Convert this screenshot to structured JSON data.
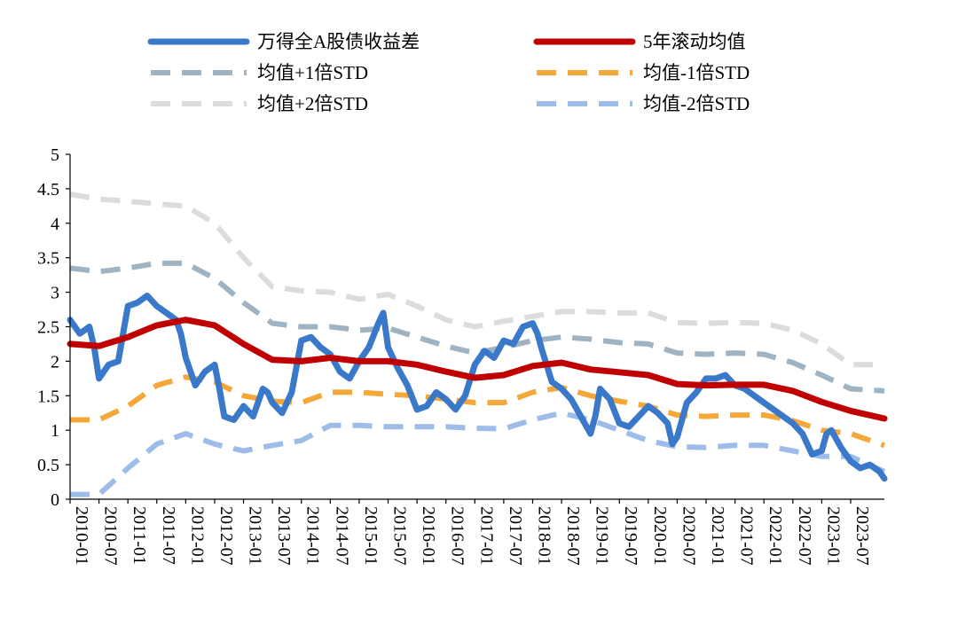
{
  "chart_data": {
    "type": "line",
    "title": "",
    "xlabel": "",
    "ylabel": "",
    "ylim": [
      0,
      5
    ],
    "y_ticks": [
      "0",
      "0.5",
      "1",
      "1.5",
      "2",
      "2.5",
      "3",
      "3.5",
      "4",
      "4.5",
      "5"
    ],
    "x_ticks": [
      "2010-01",
      "2010-07",
      "2011-01",
      "2011-07",
      "2012-01",
      "2012-07",
      "2013-01",
      "2013-07",
      "2014-01",
      "2014-07",
      "2015-01",
      "2015-07",
      "2016-01",
      "2016-07",
      "2017-01",
      "2017-07",
      "2018-01",
      "2018-07",
      "2019-01",
      "2019-07",
      "2020-01",
      "2020-07",
      "2021-01",
      "2021-07",
      "2022-01",
      "2022-07",
      "2023-01",
      "2023-07"
    ],
    "x_range": [
      "2010-01",
      "2024-02"
    ],
    "grid": false,
    "legend_position": "top",
    "series": [
      {
        "name": "万得全A股债收益差",
        "color": "#3a78c9",
        "style": "solid-thick",
        "points": [
          [
            "2010-01",
            2.6
          ],
          [
            "2010-03",
            2.4
          ],
          [
            "2010-05",
            2.5
          ],
          [
            "2010-06",
            2.2
          ],
          [
            "2010-07",
            1.75
          ],
          [
            "2010-09",
            1.95
          ],
          [
            "2010-11",
            2.0
          ],
          [
            "2011-01",
            2.8
          ],
          [
            "2011-03",
            2.85
          ],
          [
            "2011-05",
            2.95
          ],
          [
            "2011-07",
            2.8
          ],
          [
            "2011-09",
            2.7
          ],
          [
            "2011-11",
            2.6
          ],
          [
            "2011-12",
            2.4
          ],
          [
            "2012-01",
            2.05
          ],
          [
            "2012-03",
            1.65
          ],
          [
            "2012-05",
            1.85
          ],
          [
            "2012-07",
            1.95
          ],
          [
            "2012-08",
            1.6
          ],
          [
            "2012-09",
            1.2
          ],
          [
            "2012-11",
            1.15
          ],
          [
            "2013-01",
            1.35
          ],
          [
            "2013-03",
            1.2
          ],
          [
            "2013-05",
            1.6
          ],
          [
            "2013-06",
            1.55
          ],
          [
            "2013-07",
            1.4
          ],
          [
            "2013-09",
            1.25
          ],
          [
            "2013-11",
            1.55
          ],
          [
            "2014-01",
            2.3
          ],
          [
            "2014-03",
            2.35
          ],
          [
            "2014-05",
            2.2
          ],
          [
            "2014-07",
            2.1
          ],
          [
            "2014-09",
            1.85
          ],
          [
            "2014-11",
            1.75
          ],
          [
            "2015-01",
            2.0
          ],
          [
            "2015-03",
            2.2
          ],
          [
            "2015-05",
            2.55
          ],
          [
            "2015-06",
            2.7
          ],
          [
            "2015-07",
            2.2
          ],
          [
            "2015-09",
            1.9
          ],
          [
            "2015-11",
            1.65
          ],
          [
            "2016-01",
            1.3
          ],
          [
            "2016-03",
            1.35
          ],
          [
            "2016-05",
            1.55
          ],
          [
            "2016-07",
            1.45
          ],
          [
            "2016-09",
            1.3
          ],
          [
            "2016-11",
            1.5
          ],
          [
            "2017-01",
            1.95
          ],
          [
            "2017-03",
            2.15
          ],
          [
            "2017-05",
            2.05
          ],
          [
            "2017-07",
            2.3
          ],
          [
            "2017-09",
            2.25
          ],
          [
            "2017-11",
            2.5
          ],
          [
            "2018-01",
            2.55
          ],
          [
            "2018-02",
            2.4
          ],
          [
            "2018-03",
            2.15
          ],
          [
            "2018-05",
            1.7
          ],
          [
            "2018-07",
            1.6
          ],
          [
            "2018-09",
            1.45
          ],
          [
            "2018-11",
            1.2
          ],
          [
            "2019-01",
            0.95
          ],
          [
            "2019-02",
            1.2
          ],
          [
            "2019-03",
            1.6
          ],
          [
            "2019-05",
            1.45
          ],
          [
            "2019-07",
            1.1
          ],
          [
            "2019-09",
            1.05
          ],
          [
            "2019-11",
            1.2
          ],
          [
            "2020-01",
            1.35
          ],
          [
            "2020-03",
            1.25
          ],
          [
            "2020-05",
            1.1
          ],
          [
            "2020-06",
            0.8
          ],
          [
            "2020-07",
            0.9
          ],
          [
            "2020-09",
            1.4
          ],
          [
            "2020-11",
            1.55
          ],
          [
            "2021-01",
            1.75
          ],
          [
            "2021-03",
            1.75
          ],
          [
            "2021-05",
            1.8
          ],
          [
            "2021-07",
            1.65
          ],
          [
            "2021-09",
            1.6
          ],
          [
            "2021-11",
            1.5
          ],
          [
            "2022-01",
            1.4
          ],
          [
            "2022-03",
            1.3
          ],
          [
            "2022-05",
            1.2
          ],
          [
            "2022-07",
            1.1
          ],
          [
            "2022-09",
            0.95
          ],
          [
            "2022-11",
            0.65
          ],
          [
            "2023-01",
            0.7
          ],
          [
            "2023-02",
            0.95
          ],
          [
            "2023-03",
            1.0
          ],
          [
            "2023-05",
            0.75
          ],
          [
            "2023-07",
            0.55
          ],
          [
            "2023-09",
            0.45
          ],
          [
            "2023-11",
            0.5
          ],
          [
            "2024-01",
            0.4
          ],
          [
            "2024-02",
            0.3
          ]
        ]
      },
      {
        "name": "5年滚动均值",
        "color": "#c00000",
        "style": "solid-thick",
        "points": [
          [
            "2010-01",
            2.25
          ],
          [
            "2010-07",
            2.22
          ],
          [
            "2011-01",
            2.35
          ],
          [
            "2011-07",
            2.52
          ],
          [
            "2012-01",
            2.6
          ],
          [
            "2012-07",
            2.52
          ],
          [
            "2013-01",
            2.25
          ],
          [
            "2013-07",
            2.02
          ],
          [
            "2014-01",
            2.0
          ],
          [
            "2014-07",
            2.05
          ],
          [
            "2015-01",
            2.0
          ],
          [
            "2015-07",
            2.0
          ],
          [
            "2016-01",
            1.95
          ],
          [
            "2016-07",
            1.85
          ],
          [
            "2017-01",
            1.76
          ],
          [
            "2017-07",
            1.8
          ],
          [
            "2018-01",
            1.93
          ],
          [
            "2018-07",
            1.98
          ],
          [
            "2019-01",
            1.88
          ],
          [
            "2019-07",
            1.84
          ],
          [
            "2020-01",
            1.8
          ],
          [
            "2020-07",
            1.67
          ],
          [
            "2021-01",
            1.65
          ],
          [
            "2021-07",
            1.66
          ],
          [
            "2022-01",
            1.66
          ],
          [
            "2022-07",
            1.57
          ],
          [
            "2023-01",
            1.41
          ],
          [
            "2023-07",
            1.28
          ],
          [
            "2024-02",
            1.17
          ]
        ]
      },
      {
        "name": "均值+1倍STD",
        "color": "#9fb3c2",
        "style": "dashed",
        "points": [
          [
            "2010-01",
            3.35
          ],
          [
            "2010-07",
            3.3
          ],
          [
            "2011-01",
            3.35
          ],
          [
            "2011-07",
            3.42
          ],
          [
            "2012-01",
            3.42
          ],
          [
            "2012-07",
            3.2
          ],
          [
            "2013-01",
            2.85
          ],
          [
            "2013-07",
            2.55
          ],
          [
            "2014-01",
            2.5
          ],
          [
            "2014-07",
            2.5
          ],
          [
            "2015-01",
            2.45
          ],
          [
            "2015-07",
            2.48
          ],
          [
            "2016-01",
            2.35
          ],
          [
            "2016-07",
            2.22
          ],
          [
            "2017-01",
            2.12
          ],
          [
            "2017-07",
            2.2
          ],
          [
            "2018-01",
            2.3
          ],
          [
            "2018-07",
            2.35
          ],
          [
            "2019-01",
            2.32
          ],
          [
            "2019-07",
            2.27
          ],
          [
            "2020-01",
            2.25
          ],
          [
            "2020-07",
            2.12
          ],
          [
            "2021-01",
            2.1
          ],
          [
            "2021-07",
            2.12
          ],
          [
            "2022-01",
            2.1
          ],
          [
            "2022-07",
            1.98
          ],
          [
            "2023-01",
            1.8
          ],
          [
            "2023-07",
            1.6
          ],
          [
            "2024-02",
            1.57
          ]
        ]
      },
      {
        "name": "均值-1倍STD",
        "color": "#f5a83a",
        "style": "dashed",
        "points": [
          [
            "2010-01",
            1.15
          ],
          [
            "2010-07",
            1.15
          ],
          [
            "2011-01",
            1.35
          ],
          [
            "2011-07",
            1.65
          ],
          [
            "2012-01",
            1.77
          ],
          [
            "2012-07",
            1.7
          ],
          [
            "2013-01",
            1.5
          ],
          [
            "2013-07",
            1.42
          ],
          [
            "2014-01",
            1.4
          ],
          [
            "2014-07",
            1.55
          ],
          [
            "2015-01",
            1.55
          ],
          [
            "2015-07",
            1.52
          ],
          [
            "2016-01",
            1.5
          ],
          [
            "2016-07",
            1.45
          ],
          [
            "2017-01",
            1.4
          ],
          [
            "2017-07",
            1.4
          ],
          [
            "2018-01",
            1.55
          ],
          [
            "2018-07",
            1.62
          ],
          [
            "2019-01",
            1.5
          ],
          [
            "2019-07",
            1.42
          ],
          [
            "2020-01",
            1.35
          ],
          [
            "2020-07",
            1.22
          ],
          [
            "2021-01",
            1.2
          ],
          [
            "2021-07",
            1.22
          ],
          [
            "2022-01",
            1.22
          ],
          [
            "2022-07",
            1.14
          ],
          [
            "2023-01",
            1.0
          ],
          [
            "2023-07",
            0.95
          ],
          [
            "2024-02",
            0.78
          ]
        ]
      },
      {
        "name": "均值+2倍STD",
        "color": "#dcdcdc",
        "style": "dashed",
        "points": [
          [
            "2010-01",
            4.42
          ],
          [
            "2010-07",
            4.35
          ],
          [
            "2011-01",
            4.32
          ],
          [
            "2011-07",
            4.28
          ],
          [
            "2012-01",
            4.25
          ],
          [
            "2012-07",
            4.0
          ],
          [
            "2013-01",
            3.5
          ],
          [
            "2013-07",
            3.08
          ],
          [
            "2014-01",
            3.02
          ],
          [
            "2014-07",
            3.0
          ],
          [
            "2015-01",
            2.9
          ],
          [
            "2015-07",
            2.97
          ],
          [
            "2016-01",
            2.8
          ],
          [
            "2016-07",
            2.6
          ],
          [
            "2017-01",
            2.5
          ],
          [
            "2017-07",
            2.58
          ],
          [
            "2018-01",
            2.65
          ],
          [
            "2018-07",
            2.72
          ],
          [
            "2019-01",
            2.72
          ],
          [
            "2019-07",
            2.7
          ],
          [
            "2020-01",
            2.7
          ],
          [
            "2020-07",
            2.56
          ],
          [
            "2021-01",
            2.55
          ],
          [
            "2021-07",
            2.56
          ],
          [
            "2022-01",
            2.55
          ],
          [
            "2022-07",
            2.45
          ],
          [
            "2023-01",
            2.25
          ],
          [
            "2023-07",
            1.95
          ],
          [
            "2024-02",
            1.95
          ]
        ]
      },
      {
        "name": "均值-2倍STD",
        "color": "#9dbde8",
        "style": "dashed",
        "points": [
          [
            "2010-01",
            0.07
          ],
          [
            "2010-07",
            0.07
          ],
          [
            "2011-01",
            0.45
          ],
          [
            "2011-07",
            0.8
          ],
          [
            "2012-01",
            0.95
          ],
          [
            "2012-07",
            0.8
          ],
          [
            "2013-01",
            0.7
          ],
          [
            "2013-07",
            0.78
          ],
          [
            "2014-01",
            0.85
          ],
          [
            "2014-07",
            1.07
          ],
          [
            "2015-01",
            1.07
          ],
          [
            "2015-07",
            1.05
          ],
          [
            "2016-01",
            1.05
          ],
          [
            "2016-07",
            1.05
          ],
          [
            "2017-01",
            1.03
          ],
          [
            "2017-07",
            1.02
          ],
          [
            "2018-01",
            1.15
          ],
          [
            "2018-07",
            1.25
          ],
          [
            "2019-01",
            1.15
          ],
          [
            "2019-07",
            1.0
          ],
          [
            "2020-01",
            0.85
          ],
          [
            "2020-07",
            0.76
          ],
          [
            "2021-01",
            0.75
          ],
          [
            "2021-07",
            0.78
          ],
          [
            "2022-01",
            0.78
          ],
          [
            "2022-07",
            0.7
          ],
          [
            "2023-01",
            0.62
          ],
          [
            "2023-07",
            0.62
          ],
          [
            "2024-02",
            0.4
          ]
        ]
      }
    ],
    "legend": [
      {
        "label": "万得全A股债收益差",
        "color": "#3a78c9",
        "style": "solid-thick"
      },
      {
        "label": "5年滚动均值",
        "color": "#c00000",
        "style": "solid-thick"
      },
      {
        "label": "均值+1倍STD",
        "color": "#9fb3c2",
        "style": "dashed"
      },
      {
        "label": "均值-1倍STD",
        "color": "#f5a83a",
        "style": "dashed"
      },
      {
        "label": "均值+2倍STD",
        "color": "#dcdcdc",
        "style": "dashed"
      },
      {
        "label": "均值-2倍STD",
        "color": "#9dbde8",
        "style": "dashed"
      }
    ]
  }
}
